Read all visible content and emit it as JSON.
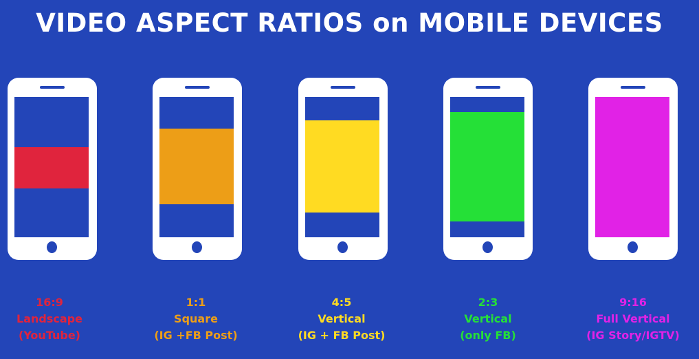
{
  "title": "VIDEO ASPECT RATIOS on MOBILE DEVICES",
  "colors": {
    "background": "#2345b8",
    "phone": "#ffffff"
  },
  "devices": [
    {
      "ratio": "16:9",
      "label": "Landscape",
      "note": "(YouTube)",
      "color": "#e0243d"
    },
    {
      "ratio": "1:1",
      "label": "Square",
      "note": "(IG +FB Post)",
      "color": "#ed9e17"
    },
    {
      "ratio": "4:5",
      "label": "Vertical",
      "note": "(IG + FB Post)",
      "color": "#ffdb22"
    },
    {
      "ratio": "2:3",
      "label": "Vertical",
      "note": "(only FB)",
      "color": "#25e037"
    },
    {
      "ratio": "9:16",
      "label": "Full Vertical",
      "note": "(IG Story/IGTV)",
      "color": "#e122e6"
    }
  ]
}
